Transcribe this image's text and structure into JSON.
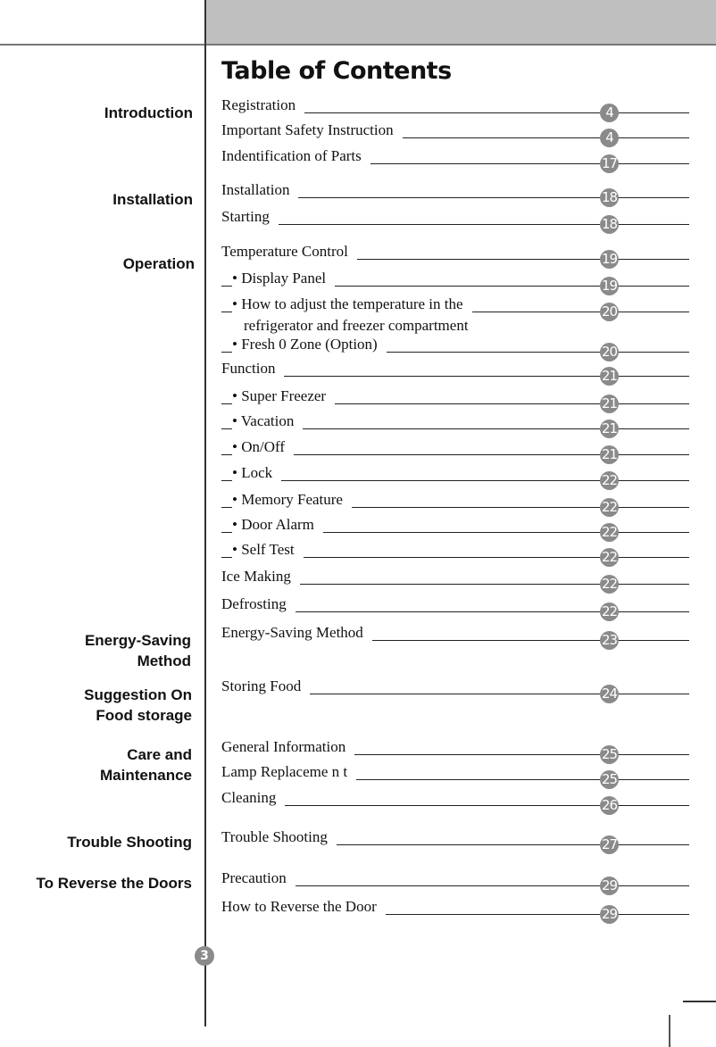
{
  "title": "Table of Contents",
  "page_number": "3",
  "badge_color": "#8a8a8a",
  "sections": [
    {
      "label": "Introduction"
    },
    {
      "label": "Installation"
    },
    {
      "label": "Operation"
    },
    {
      "label": "Energy-Saving\nMethod"
    },
    {
      "label": "Suggestion On\nFood storage"
    },
    {
      "label": "Care and\nMaintenance"
    },
    {
      "label": "Trouble Shooting"
    },
    {
      "label": "To Reverse the Doors"
    }
  ],
  "entries": [
    {
      "text": "Registration",
      "page": "4"
    },
    {
      "text": "Important Safety Instruction",
      "page": "4"
    },
    {
      "text": "Indentification of Parts",
      "page": "17"
    },
    {
      "text": "Installation",
      "page": "18"
    },
    {
      "text": "Starting",
      "page": "18"
    },
    {
      "text": "Temperature Control",
      "page": "19"
    },
    {
      "text": "• Display Panel",
      "page": "19",
      "sub": true
    },
    {
      "text": "• How to adjust the temperature in the",
      "text2": "refrigerator and freezer compartment",
      "page": "20",
      "sub": true
    },
    {
      "text": "• Fresh 0 Zone (Option)",
      "page": "20",
      "sub": true
    },
    {
      "text": "Function",
      "page": "21"
    },
    {
      "text": "• Super Freezer",
      "page": "21",
      "sub": true
    },
    {
      "text": "• Vacation",
      "page": "21",
      "sub": true
    },
    {
      "text": "• On/Off",
      "page": "21",
      "sub": true
    },
    {
      "text": "• Lock",
      "page": "22",
      "sub": true
    },
    {
      "text": "• Memory Feature",
      "page": "22",
      "sub": true
    },
    {
      "text": "• Door Alarm",
      "page": "22",
      "sub": true
    },
    {
      "text": "• Self Test",
      "page": "22",
      "sub": true
    },
    {
      "text": "Ice Making",
      "page": "22"
    },
    {
      "text": "Defrosting",
      "page": "22"
    },
    {
      "text": "Energy-Saving Method",
      "page": "23"
    },
    {
      "text": "Storing Food",
      "page": "24"
    },
    {
      "text": "General Information",
      "page": "25"
    },
    {
      "text": "Lamp Replaceme n t",
      "page": "25"
    },
    {
      "text": "Cleaning",
      "page": "26"
    },
    {
      "text": "Trouble Shooting",
      "page": "27"
    },
    {
      "text": "Precaution",
      "page": "29"
    },
    {
      "text": "How to Reverse the Door",
      "page": "29"
    }
  ]
}
